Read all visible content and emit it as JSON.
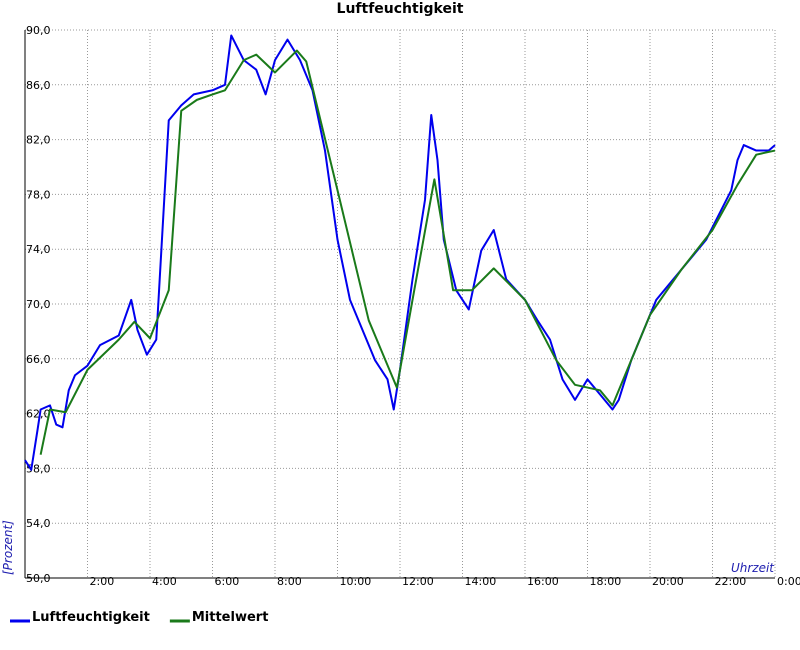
{
  "chart_data": {
    "type": "line",
    "title": "Luftfeuchtigkeit",
    "y_label": "[Prozent]",
    "x_label": "Uhrzeit",
    "xlim": [
      0,
      24
    ],
    "ylim": [
      50,
      90
    ],
    "xticks": [
      {
        "value": 2,
        "label": "2:00"
      },
      {
        "value": 4,
        "label": "4:00"
      },
      {
        "value": 6,
        "label": "6:00"
      },
      {
        "value": 8,
        "label": "8:00"
      },
      {
        "value": 10,
        "label": "10:00"
      },
      {
        "value": 12,
        "label": "12:00"
      },
      {
        "value": 14,
        "label": "14:00"
      },
      {
        "value": 16,
        "label": "16:00"
      },
      {
        "value": 18,
        "label": "18:00"
      },
      {
        "value": 20,
        "label": "20:00"
      },
      {
        "value": 22,
        "label": "22:00"
      },
      {
        "value": 24,
        "label": "0:00"
      }
    ],
    "yticks": [
      {
        "value": 50,
        "label": "50,0"
      },
      {
        "value": 54,
        "label": "54,0"
      },
      {
        "value": 58,
        "label": "58,0"
      },
      {
        "value": 62,
        "label": "62,0"
      },
      {
        "value": 66,
        "label": "66,0"
      },
      {
        "value": 70,
        "label": "70,0"
      },
      {
        "value": 74,
        "label": "74,0"
      },
      {
        "value": 78,
        "label": "78,0"
      },
      {
        "value": 82,
        "label": "82,0"
      },
      {
        "value": 86,
        "label": "86,0"
      },
      {
        "value": 90,
        "label": "90,0"
      }
    ],
    "grid": true,
    "series": [
      {
        "name": "Luftfeuchtigkeit",
        "color": "#0000ee",
        "x": [
          0,
          0.2,
          0.4,
          0.5,
          0.8,
          1.0,
          1.2,
          1.4,
          1.6,
          2.0,
          2.4,
          3.0,
          3.4,
          3.6,
          3.9,
          4.2,
          4.4,
          4.6,
          5.0,
          5.4,
          6.0,
          6.4,
          6.6,
          7.0,
          7.4,
          7.7,
          8.0,
          8.4,
          8.8,
          9.2,
          9.6,
          10.0,
          10.4,
          10.8,
          11.2,
          11.6,
          11.8,
          12.0,
          12.4,
          12.8,
          13.0,
          13.2,
          13.4,
          13.8,
          14.2,
          14.6,
          15.0,
          15.4,
          16.0,
          16.4,
          16.8,
          17.2,
          17.6,
          18.0,
          18.4,
          18.8,
          19.0,
          19.4,
          19.8,
          20.2,
          20.6,
          21.0,
          21.4,
          21.8,
          22.2,
          22.6,
          22.8,
          23.0,
          23.4,
          23.8,
          24.0
        ],
        "values": [
          58.6,
          57.9,
          60.8,
          62.3,
          62.6,
          61.2,
          61.0,
          63.7,
          64.8,
          65.5,
          67.0,
          67.7,
          70.3,
          68.1,
          66.3,
          67.4,
          75.4,
          83.4,
          84.5,
          85.3,
          85.6,
          86.0,
          89.6,
          87.8,
          87.1,
          85.3,
          87.8,
          89.3,
          87.8,
          85.6,
          81.2,
          74.7,
          70.3,
          68.1,
          65.9,
          64.5,
          62.3,
          65.2,
          71.8,
          77.6,
          83.8,
          80.5,
          74.7,
          71.0,
          69.6,
          73.9,
          75.4,
          71.8,
          70.3,
          68.8,
          67.4,
          64.5,
          63.0,
          64.5,
          63.4,
          62.3,
          63.0,
          65.9,
          68.1,
          70.3,
          71.4,
          72.5,
          73.6,
          74.7,
          76.5,
          78.3,
          80.5,
          81.6,
          81.2,
          81.2,
          81.6
        ]
      },
      {
        "name": "Mittelwert",
        "color": "#1a7a1a",
        "x": [
          0.5,
          0.8,
          1.3,
          2.0,
          3.0,
          3.5,
          4.0,
          4.6,
          5.0,
          5.5,
          6.0,
          6.4,
          7.0,
          7.4,
          8.0,
          8.7,
          9.0,
          10.0,
          11.0,
          11.9,
          12.4,
          13.1,
          13.7,
          14.3,
          15.0,
          16.0,
          17.0,
          17.6,
          18.4,
          18.8,
          20.0,
          21.0,
          22.0,
          22.8,
          23.4,
          24.0
        ],
        "values": [
          59.0,
          62.3,
          62.1,
          65.2,
          67.4,
          68.7,
          67.5,
          71.0,
          84.1,
          84.9,
          85.3,
          85.6,
          87.8,
          88.2,
          86.9,
          88.5,
          87.7,
          78.3,
          68.8,
          63.9,
          70.3,
          79.1,
          71.0,
          71.0,
          72.6,
          70.3,
          65.9,
          64.1,
          63.7,
          62.6,
          69.2,
          72.5,
          75.4,
          78.7,
          80.9,
          81.2
        ]
      }
    ]
  }
}
